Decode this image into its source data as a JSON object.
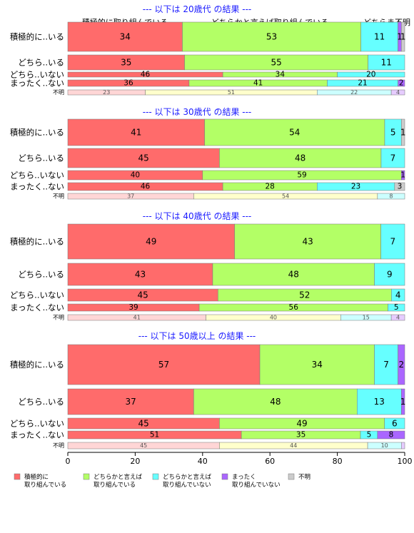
{
  "chart_data": {
    "type": "bar",
    "orientation": "horizontal",
    "stacked": "percent",
    "xlim": [
      0,
      100
    ],
    "x_ticks": [
      "0",
      "20",
      "40",
      "60",
      "80",
      "100"
    ],
    "top_headers": [
      "積極的に取り組んでいる",
      "どちらかと言えば取り組んでいる",
      "どちらま不明"
    ],
    "series": [
      {
        "name": "積極的に\n取り組んでいる",
        "color": "#ff6b6b"
      },
      {
        "name": "どちらかと言えば\n取り組んでいる",
        "color": "#b3ff66"
      },
      {
        "name": "どちらかと言えば\n取り組んでいない",
        "color": "#66ffff"
      },
      {
        "name": "まったく\n取り組んでいない",
        "color": "#aa66ff"
      },
      {
        "name": "不明",
        "color": "#cccccc"
      }
    ],
    "small_row_colors": [
      "#ffd6d6",
      "#ffffcc",
      "#ccffff",
      "#e6ccff",
      "#e6e6e6"
    ],
    "groups": [
      {
        "title": "--- 以下は 20歳代 の結果 ---",
        "rows": [
          {
            "label": "積極的に..いる",
            "values": [
              34,
              53,
              11,
              1,
              1
            ],
            "labels": [
              "34",
              "53",
              "11",
              "1",
              "1"
            ]
          },
          {
            "label": "どちら..いる",
            "values": [
              35,
              55,
              11,
              0,
              0
            ],
            "labels": [
              "35",
              "55",
              "11",
              "",
              ""
            ]
          },
          {
            "label": "どちら..いない",
            "values": [
              46,
              34,
              20,
              0,
              0
            ],
            "labels": [
              "46",
              "34",
              "20",
              "",
              ""
            ]
          },
          {
            "label": "まったく..ない",
            "values": [
              36,
              41,
              21,
              2,
              0
            ],
            "labels": [
              "36",
              "41",
              "21",
              "2",
              ""
            ]
          },
          {
            "label": "不明",
            "values": [
              23,
              51,
              22,
              4,
              0
            ],
            "labels": [
              "23",
              "51",
              "22",
              "4",
              ""
            ]
          }
        ]
      },
      {
        "title": "--- 以下は 30歳代 の結果 ---",
        "rows": [
          {
            "label": "積極的に..いる",
            "values": [
              41,
              54,
              5,
              0,
              1
            ],
            "labels": [
              "41",
              "54",
              "5",
              "",
              "1"
            ]
          },
          {
            "label": "どちら..いる",
            "values": [
              45,
              48,
              7,
              0,
              0
            ],
            "labels": [
              "45",
              "48",
              "7",
              "",
              ""
            ]
          },
          {
            "label": "どちら..いない",
            "values": [
              40,
              59,
              0,
              1,
              0
            ],
            "labels": [
              "40",
              "59",
              "",
              "1",
              ""
            ]
          },
          {
            "label": "まったく..ない",
            "values": [
              46,
              28,
              23,
              0,
              3
            ],
            "labels": [
              "46",
              "28",
              "23",
              "",
              "3"
            ]
          },
          {
            "label": "不明",
            "values": [
              37,
              54,
              8,
              0,
              0
            ],
            "labels": [
              "37",
              "54",
              "8",
              "",
              ""
            ]
          }
        ]
      },
      {
        "title": "--- 以下は 40歳代 の結果 ---",
        "rows": [
          {
            "label": "積極的に..いる",
            "values": [
              49,
              43,
              7,
              0,
              0
            ],
            "labels": [
              "49",
              "43",
              "7",
              "",
              ""
            ]
          },
          {
            "label": "どちら..いる",
            "values": [
              43,
              48,
              9,
              0,
              0
            ],
            "labels": [
              "43",
              "48",
              "9",
              "",
              ""
            ]
          },
          {
            "label": "どちら..いない",
            "values": [
              45,
              52,
              4,
              0,
              0
            ],
            "labels": [
              "45",
              "52",
              "4",
              "",
              ""
            ]
          },
          {
            "label": "まったく..ない",
            "values": [
              39,
              56,
              5,
              0,
              0
            ],
            "labels": [
              "39",
              "56",
              "5",
              "",
              ""
            ]
          },
          {
            "label": "不明",
            "values": [
              41,
              40,
              15,
              4,
              0
            ],
            "labels": [
              "41",
              "40",
              "15",
              "4",
              ""
            ]
          }
        ]
      },
      {
        "title": "--- 以下は 50歳以上 の結果 ---",
        "rows": [
          {
            "label": "積極的に..いる",
            "values": [
              57,
              34,
              7,
              2,
              0
            ],
            "labels": [
              "57",
              "34",
              "7",
              "2",
              ""
            ]
          },
          {
            "label": "どちら..いる",
            "values": [
              37,
              48,
              13,
              1,
              0
            ],
            "labels": [
              "37",
              "48",
              "13",
              "1",
              ""
            ]
          },
          {
            "label": "どちら..いない",
            "values": [
              45,
              49,
              6,
              0,
              0
            ],
            "labels": [
              "45",
              "49",
              "6",
              "",
              ""
            ]
          },
          {
            "label": "まったく..ない",
            "values": [
              51,
              35,
              5,
              8,
              0
            ],
            "labels": [
              "51",
              "35",
              "5",
              "8",
              ""
            ]
          },
          {
            "label": "不明",
            "values": [
              45,
              44,
              10,
              1,
              0
            ],
            "labels": [
              "45",
              "44",
              "10",
              "",
              ""
            ]
          }
        ]
      }
    ]
  }
}
